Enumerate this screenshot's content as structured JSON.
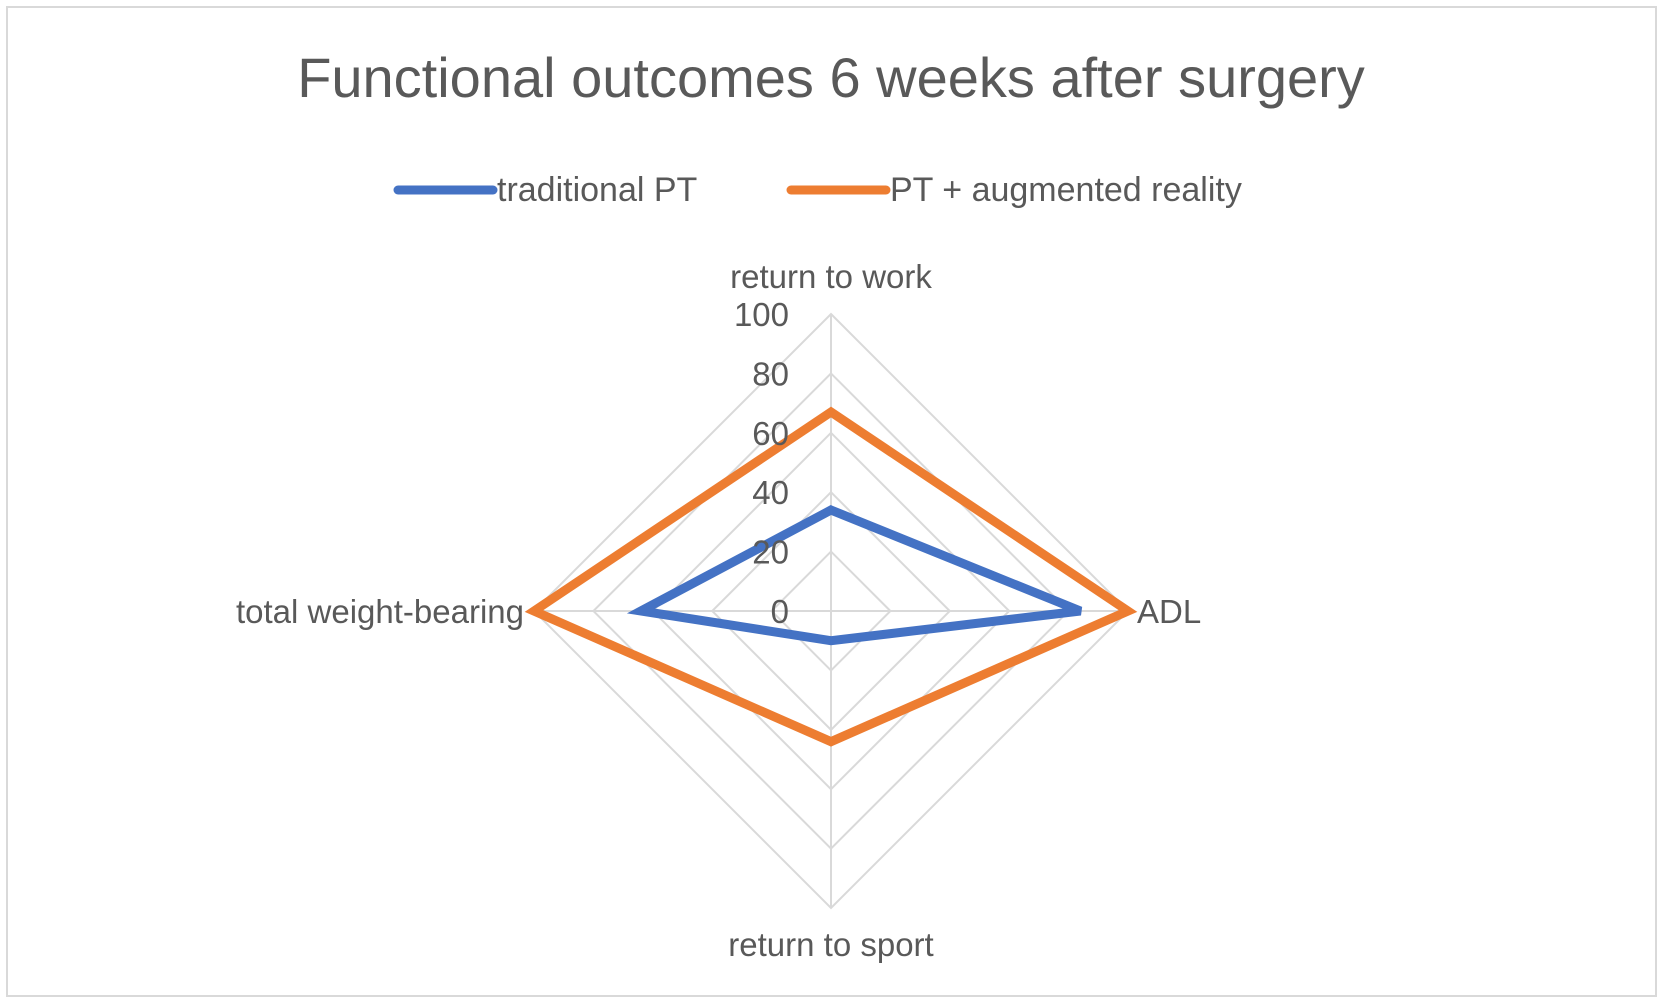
{
  "chart_data": {
    "type": "radar",
    "title": "Functional outcomes 6 weeks after surgery",
    "axes": [
      "return to work",
      "ADL",
      "return to sport",
      "total weight-bearing"
    ],
    "ticks": [
      "0",
      "20",
      "40",
      "60",
      "80",
      "100"
    ],
    "rlim": [
      0,
      100
    ],
    "grid": true,
    "legend_position": "top",
    "series": [
      {
        "name": "traditional PT",
        "color": "#4472c4",
        "values": [
          34,
          84,
          10,
          64
        ]
      },
      {
        "name": "PT + augmented reality",
        "color": "#ed7d31",
        "values": [
          67,
          100,
          44,
          100
        ]
      }
    ]
  }
}
